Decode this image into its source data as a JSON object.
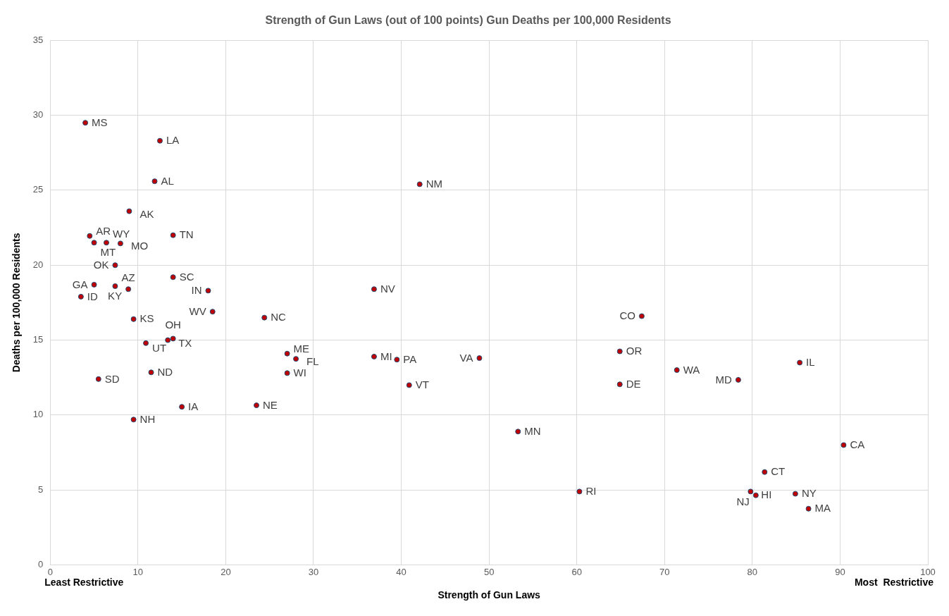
{
  "chart_data": {
    "type": "scatter",
    "title": "Strength of Gun Laws (out of 100 points) Gun Deaths per 100,000 Residents",
    "xlabel": "Strength of Gun Laws",
    "ylabel": "Deaths per 100,000 Residents",
    "annotations": [
      "Least Restrictive",
      "Most  Restrictive"
    ],
    "xlim": [
      0,
      100
    ],
    "xticks": [
      0,
      10,
      20,
      30,
      40,
      50,
      60,
      70,
      80,
      90,
      100
    ],
    "ylim": [
      0,
      35
    ],
    "yticks": [
      0,
      5,
      10,
      15,
      20,
      25,
      30,
      35
    ],
    "grid": true,
    "legend": false,
    "marker": "circle",
    "series": [
      {
        "color": "#c00000",
        "x": [
          4.0,
          12.5,
          11.9,
          9.0,
          14.0,
          4.5,
          5.0,
          6.4,
          8.0,
          7.4,
          14.0,
          5.0,
          7.4,
          8.9,
          3.5,
          18.0,
          18.5,
          24.4,
          9.5,
          10.9,
          13.4,
          14.0,
          11.5,
          5.5,
          15.0,
          23.5,
          9.5,
          36.9,
          27.0,
          28.0,
          27.0,
          36.9,
          39.5,
          40.9,
          48.9,
          42.1,
          53.3,
          60.3,
          67.4,
          64.9,
          64.9,
          71.4,
          78.4,
          85.4,
          90.4,
          81.4,
          79.8,
          80.4,
          84.9,
          86.4
        ],
        "values": [
          29.5,
          28.3,
          25.6,
          23.6,
          22.0,
          21.95,
          21.5,
          21.5,
          21.45,
          20.0,
          19.2,
          18.7,
          18.6,
          18.4,
          17.9,
          18.3,
          16.9,
          16.5,
          16.4,
          14.8,
          15.0,
          15.1,
          12.85,
          12.4,
          10.55,
          10.65,
          9.7,
          18.4,
          14.1,
          13.75,
          12.8,
          13.9,
          13.7,
          12.0,
          13.8,
          25.4,
          8.9,
          4.9,
          16.6,
          14.25,
          12.05,
          13.0,
          12.35,
          13.5,
          8.0,
          6.2,
          4.9,
          4.65,
          4.75,
          3.75
        ],
        "value_labels": [
          "MS",
          "LA",
          "AL",
          "AK",
          "TN",
          "AR",
          "MT",
          "WY",
          "MO",
          "OK",
          "SC",
          "GA",
          "AZ",
          "KY",
          "ID",
          "IN",
          "WV",
          "NC",
          "KS",
          "UT",
          "TX",
          "OH",
          "ND",
          "SD",
          "IA",
          "NE",
          "NH",
          "NV",
          "ME",
          "FL",
          "WI",
          "MI",
          "PA",
          "VT",
          "VA",
          "NM",
          "MN",
          "RI",
          "CO",
          "OR",
          "DE",
          "WA",
          "MD",
          "IL",
          "CA",
          "CT",
          "HI",
          "NJ",
          "NY",
          "MA"
        ]
      }
    ]
  }
}
